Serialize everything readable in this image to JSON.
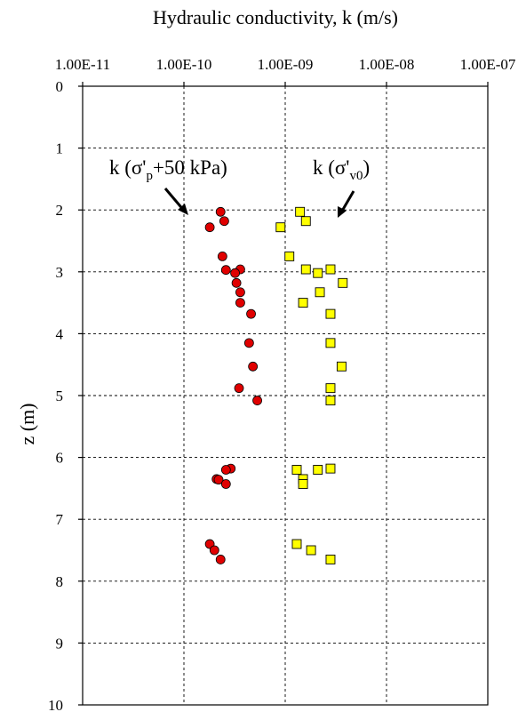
{
  "chart_data": {
    "type": "scatter",
    "title": "Hydraulic conductivity, k (m/s)",
    "xlabel": "Hydraulic conductivity, k (m/s)",
    "ylabel": "z (m)",
    "x_scale": "log",
    "x_axis_position": "top",
    "y_inverted": true,
    "xlim": [
      1e-11,
      1e-07
    ],
    "ylim": [
      0,
      10
    ],
    "x_tick_labels": [
      "1.00E-11",
      "1.00E-10",
      "1.00E-09",
      "1.00E-08",
      "1.00E-07"
    ],
    "x_tick_values": [
      1e-11,
      1e-10,
      1e-09,
      1e-08,
      1e-07
    ],
    "y_tick_labels": [
      "0",
      "1",
      "2",
      "3",
      "4",
      "5",
      "6",
      "7",
      "8",
      "9",
      "10"
    ],
    "y_tick_values": [
      0,
      1,
      2,
      3,
      4,
      5,
      6,
      7,
      8,
      9,
      10
    ],
    "grid": "dashed",
    "series": [
      {
        "marker": "circle",
        "color": "#e00000",
        "points": [
          {
            "k": 2.3e-10,
            "z": 2.03
          },
          {
            "k": 2.5e-10,
            "z": 2.18
          },
          {
            "k": 1.8e-10,
            "z": 2.28
          },
          {
            "k": 2.4e-10,
            "z": 2.75
          },
          {
            "k": 3.6e-10,
            "z": 2.96
          },
          {
            "k": 2.6e-10,
            "z": 2.97
          },
          {
            "k": 3.2e-10,
            "z": 3.02
          },
          {
            "k": 3.3e-10,
            "z": 3.18
          },
          {
            "k": 3.6e-10,
            "z": 3.33
          },
          {
            "k": 3.6e-10,
            "z": 3.5
          },
          {
            "k": 4.6e-10,
            "z": 3.68
          },
          {
            "k": 4.4e-10,
            "z": 4.15
          },
          {
            "k": 4.8e-10,
            "z": 4.53
          },
          {
            "k": 3.5e-10,
            "z": 4.88
          },
          {
            "k": 5.3e-10,
            "z": 5.08
          },
          {
            "k": 2.9e-10,
            "z": 6.18
          },
          {
            "k": 2.6e-10,
            "z": 6.2
          },
          {
            "k": 2.1e-10,
            "z": 6.35
          },
          {
            "k": 2.2e-10,
            "z": 6.36
          },
          {
            "k": 2.6e-10,
            "z": 6.43
          },
          {
            "k": 1.8e-10,
            "z": 7.4
          },
          {
            "k": 2e-10,
            "z": 7.5
          },
          {
            "k": 2.3e-10,
            "z": 7.65
          }
        ]
      },
      {
        "marker": "square",
        "color": "#ffff00",
        "points": [
          {
            "k": 1.4e-09,
            "z": 2.03
          },
          {
            "k": 1.6e-09,
            "z": 2.18
          },
          {
            "k": 9e-10,
            "z": 2.28
          },
          {
            "k": 1.1e-09,
            "z": 2.75
          },
          {
            "k": 1.6e-09,
            "z": 2.96
          },
          {
            "k": 2.8e-09,
            "z": 2.96
          },
          {
            "k": 2.1e-09,
            "z": 3.02
          },
          {
            "k": 3.7e-09,
            "z": 3.18
          },
          {
            "k": 2.2e-09,
            "z": 3.33
          },
          {
            "k": 1.5e-09,
            "z": 3.5
          },
          {
            "k": 2.8e-09,
            "z": 3.68
          },
          {
            "k": 2.8e-09,
            "z": 4.15
          },
          {
            "k": 3.6e-09,
            "z": 4.53
          },
          {
            "k": 2.8e-09,
            "z": 4.88
          },
          {
            "k": 2.8e-09,
            "z": 5.08
          },
          {
            "k": 1.3e-09,
            "z": 6.2
          },
          {
            "k": 2.1e-09,
            "z": 6.2
          },
          {
            "k": 2.8e-09,
            "z": 6.18
          },
          {
            "k": 1.5e-09,
            "z": 6.35
          },
          {
            "k": 1.5e-09,
            "z": 6.43
          },
          {
            "k": 1.3e-09,
            "z": 7.4
          },
          {
            "k": 1.8e-09,
            "z": 7.5
          },
          {
            "k": 2.8e-09,
            "z": 7.65
          }
        ]
      }
    ],
    "annotations": [
      {
        "text": "k (σ'",
        "sub": "p",
        "rest": "+50 kPa)",
        "points_to": {
          "k": 1.1e-10,
          "z": 2.08
        }
      },
      {
        "text": "k (σ'",
        "sub": "v0",
        "rest": ")",
        "points_to": {
          "k": 3.2e-09,
          "z": 2.12
        }
      }
    ]
  }
}
